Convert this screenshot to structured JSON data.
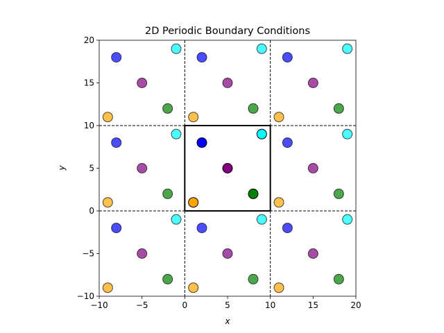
{
  "chart_data": {
    "type": "scatter",
    "title": "2D Periodic Boundary Conditions",
    "xlabel": "x",
    "ylabel": "y",
    "xlim": [
      -10,
      20
    ],
    "ylim": [
      -10,
      20
    ],
    "xticks": [
      -10,
      -5,
      0,
      5,
      10,
      15,
      20
    ],
    "yticks": [
      -10,
      -5,
      0,
      5,
      10,
      15,
      20
    ],
    "xtick_labels": [
      "−10",
      "−5",
      "0",
      "5",
      "10",
      "15",
      "20"
    ],
    "ytick_labels": [
      "−10",
      "−5",
      "0",
      "5",
      "10",
      "15",
      "20"
    ],
    "box_size": 10,
    "periodic_shifts": [
      -10,
      0,
      10
    ],
    "particles": [
      {
        "x": 2,
        "y": 8,
        "color": "#0000ff"
      },
      {
        "x": 5,
        "y": 5,
        "color": "#800080"
      },
      {
        "x": 8,
        "y": 2,
        "color": "#008000"
      },
      {
        "x": 1,
        "y": 1,
        "color": "#ffa500"
      },
      {
        "x": 9,
        "y": 9,
        "color": "#00ffff"
      }
    ],
    "image_alpha": 0.7
  }
}
